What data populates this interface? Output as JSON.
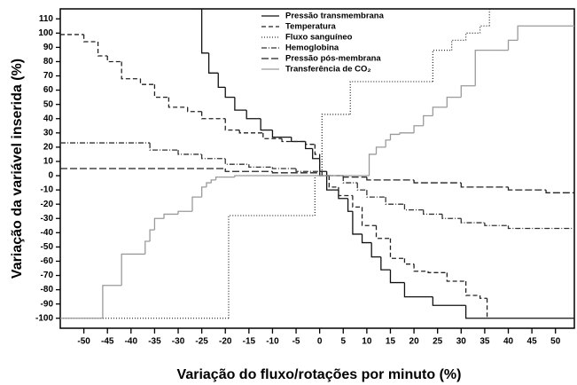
{
  "chart_data": {
    "type": "step",
    "x_label": "Variação do fluxo/rotações por minuto (%)",
    "y_label": "Variação da variável inserida (%)",
    "xlim": [
      -55,
      54
    ],
    "ylim": [
      -107,
      117
    ],
    "xticks": [
      -50,
      -45,
      -40,
      -35,
      -30,
      -25,
      -20,
      -15,
      -10,
      -5,
      0,
      5,
      10,
      15,
      20,
      25,
      30,
      35,
      40,
      45,
      50
    ],
    "yticks": [
      -100,
      -90,
      -80,
      -70,
      -60,
      -50,
      -40,
      -30,
      -20,
      -10,
      0,
      10,
      20,
      30,
      40,
      50,
      60,
      70,
      80,
      90,
      100,
      110
    ],
    "legend": "top-center",
    "series": [
      {
        "name": "Pressão transmembrana",
        "color": "#111111",
        "dash": "none",
        "x": [
          -27,
          -25,
          -23.5,
          -21.5,
          -20,
          -18,
          -15.5,
          -12.5,
          -10,
          -6,
          -3,
          -1.5,
          0,
          1.5,
          4,
          6,
          7,
          9,
          11,
          13,
          15,
          18,
          24,
          31,
          54
        ],
        "values": [
          117,
          86,
          72,
          62,
          55,
          46,
          40,
          32,
          27,
          24,
          19,
          12,
          3,
          -10,
          -16,
          -25,
          -41,
          -47,
          -57,
          -66,
          -75,
          -85,
          -91,
          -100,
          -100
        ]
      },
      {
        "name": "Temperatura",
        "color": "#222222",
        "dash": "5,3",
        "x": [
          -55,
          -50,
          -47,
          -45,
          -42,
          -38,
          -35,
          -32,
          -28,
          -25,
          -20,
          -17,
          -12,
          -8,
          -3,
          -1,
          0,
          0.5,
          2,
          4,
          7,
          9,
          12,
          15,
          18,
          20,
          23,
          27,
          31,
          34,
          35.5
        ],
        "values": [
          99,
          94,
          84,
          80,
          68,
          64,
          55,
          48,
          45,
          40,
          32,
          30,
          26,
          24,
          22,
          15,
          3,
          0,
          -8,
          -14,
          -22,
          -35,
          -44,
          -58,
          -62,
          -67,
          -68,
          -74,
          -84,
          -86,
          -100
        ]
      },
      {
        "name": "Fluxo sanguíneo",
        "color": "#333333",
        "dash": "1,2",
        "x": [
          -55,
          -19.3,
          -1,
          0.5,
          6.5,
          24,
          28,
          31,
          34,
          36
        ],
        "values": [
          -100,
          -28,
          0,
          43,
          66,
          88,
          95,
          100,
          105,
          117
        ]
      },
      {
        "name": "Hemoglobina",
        "color": "#333333",
        "dash": "6,2,1,2",
        "x": [
          -55,
          -36,
          -30,
          -25,
          -20,
          -15,
          -10,
          -5,
          0,
          5,
          8,
          10,
          14,
          18,
          22,
          26,
          30,
          35,
          40,
          54
        ],
        "values": [
          23,
          18,
          15,
          12,
          8,
          6,
          5,
          3,
          0,
          -5,
          -10,
          -15,
          -20,
          -24,
          -27,
          -30,
          -33,
          -35,
          -37,
          -37
        ]
      },
      {
        "name": "Pressão pós-membrana",
        "color": "#222222",
        "dash": "8,3",
        "x": [
          -55,
          -20,
          -10,
          0,
          5,
          10,
          20,
          30,
          40,
          48,
          54
        ],
        "values": [
          5,
          3,
          2,
          0,
          -1,
          -3,
          -5,
          -8,
          -10,
          -12,
          -12
        ]
      },
      {
        "name": "Transferência de CO₂",
        "color": "#9a9a9a",
        "dash": "none",
        "x": [
          -55,
          -46,
          -42,
          -37,
          -36,
          -35,
          -33,
          -30,
          -27,
          -25,
          -24,
          -23,
          -22,
          -18,
          10.5,
          12,
          14,
          15,
          17,
          20,
          22,
          24,
          27,
          30,
          33,
          37,
          40,
          42,
          54
        ],
        "values": [
          -100,
          -77,
          -55,
          -46,
          -38,
          -30,
          -27,
          -25,
          -15,
          -8,
          -5,
          -3,
          -1,
          0,
          15,
          20,
          25,
          29,
          30,
          35,
          42,
          48,
          55,
          63,
          88,
          88,
          95,
          105,
          105
        ]
      }
    ]
  }
}
